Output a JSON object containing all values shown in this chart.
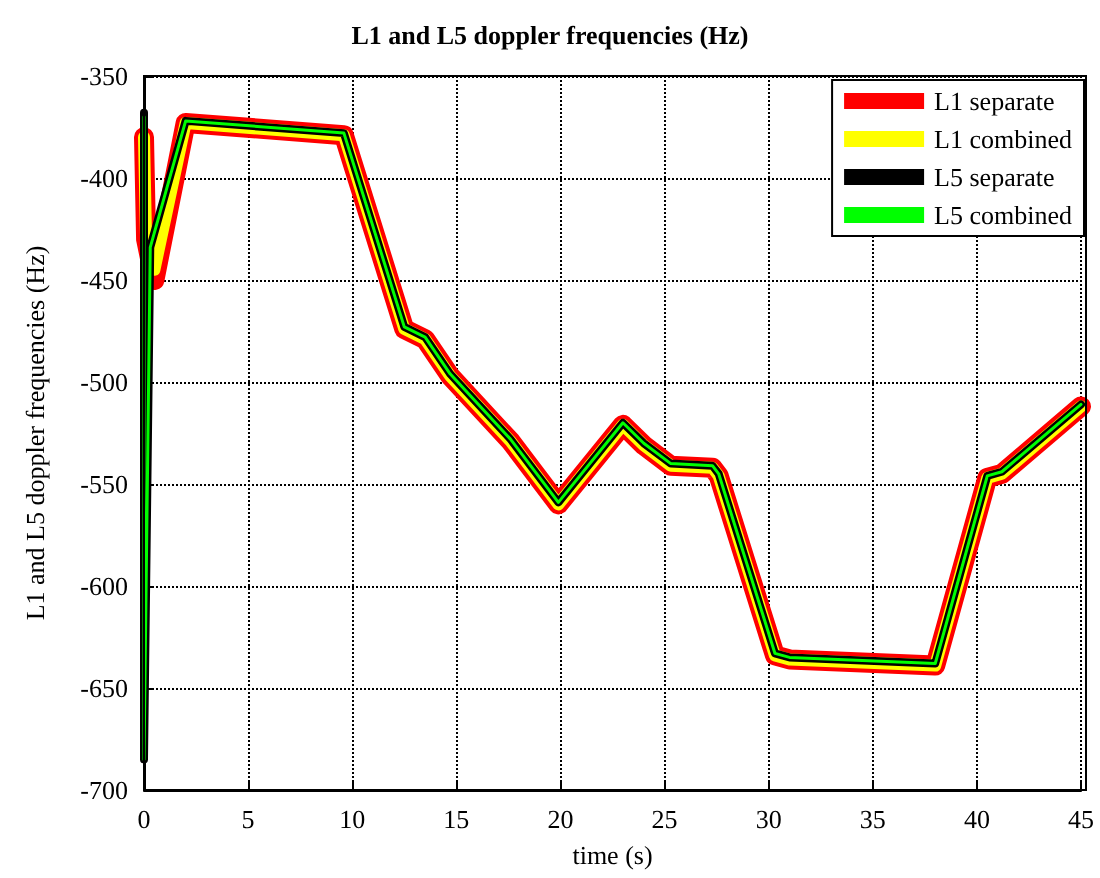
{
  "chart_data": {
    "type": "line",
    "title": "L1 and L5 doppler frequencies (Hz)",
    "xlabel": "time (s)",
    "ylabel": "L1 and L5 doppler frequencies (Hz)",
    "xlim": [
      0,
      45
    ],
    "xticks": [
      0,
      5,
      10,
      15,
      20,
      25,
      30,
      35,
      40,
      45
    ],
    "ylim": [
      -700,
      -350
    ],
    "yticks": [
      -700,
      -650,
      -600,
      -550,
      -500,
      -450,
      -400,
      -350
    ],
    "grid": true,
    "legend": "top right",
    "marker": "none",
    "line_style": "solid",
    "series": [
      {
        "name": "L1 separate",
        "color": "#ff0000",
        "x": [
          0,
          0.1,
          0.5,
          2,
          9.6,
          12.5,
          13.5,
          14.7,
          17.6,
          19.9,
          23,
          24,
          25.3,
          27.3,
          27.6,
          30.3,
          31,
          38,
          40.5,
          41.2,
          45
        ],
        "values": [
          -380,
          -430,
          -450,
          -373,
          -379,
          -474,
          -479,
          -497,
          -529,
          -560,
          -521,
          -531,
          -541,
          -542,
          -546,
          -634,
          -636,
          -639,
          -547,
          -545,
          -512
        ]
      },
      {
        "name": "L1 combined",
        "color": "#ffff00",
        "x": [
          0,
          0.1,
          0.5,
          2,
          9.6,
          12.5,
          13.5,
          14.7,
          17.6,
          19.9,
          23,
          24,
          25.3,
          27.3,
          27.6,
          30.3,
          31,
          38,
          40.5,
          41.2,
          45
        ],
        "values": [
          -380,
          -430,
          -445,
          -373,
          -379,
          -474,
          -479,
          -497,
          -529,
          -560,
          -521,
          -531,
          -541,
          -542,
          -546,
          -634,
          -636,
          -639,
          -547,
          -545,
          -512
        ]
      },
      {
        "name": "L5 separate",
        "color": "#000000",
        "x": [
          0,
          0,
          0.3,
          2,
          9.6,
          12.5,
          13.5,
          14.7,
          17.6,
          19.9,
          23,
          24,
          25.3,
          27.3,
          27.6,
          30.3,
          31,
          38,
          40.5,
          41.2,
          45
        ],
        "values": [
          -368,
          -685,
          -434,
          -372,
          -378,
          -473,
          -478,
          -496,
          -528,
          -559,
          -520,
          -530,
          -540,
          -541,
          -545,
          -633,
          -635,
          -638,
          -546,
          -544,
          -511
        ]
      },
      {
        "name": "L5 combined",
        "color": "#00ff00",
        "x": [
          0,
          0,
          0.3,
          2,
          9.6,
          12.5,
          13.5,
          14.7,
          17.6,
          19.9,
          23,
          24,
          25.3,
          27.3,
          27.6,
          30.3,
          31,
          38,
          40.5,
          41.2,
          45
        ],
        "values": [
          -370,
          -685,
          -434,
          -372,
          -378,
          -473,
          -478,
          -496,
          -528,
          -559,
          -520,
          -530,
          -540,
          -541,
          -545,
          -633,
          -635,
          -638,
          -546,
          -544,
          -511
        ]
      }
    ]
  }
}
